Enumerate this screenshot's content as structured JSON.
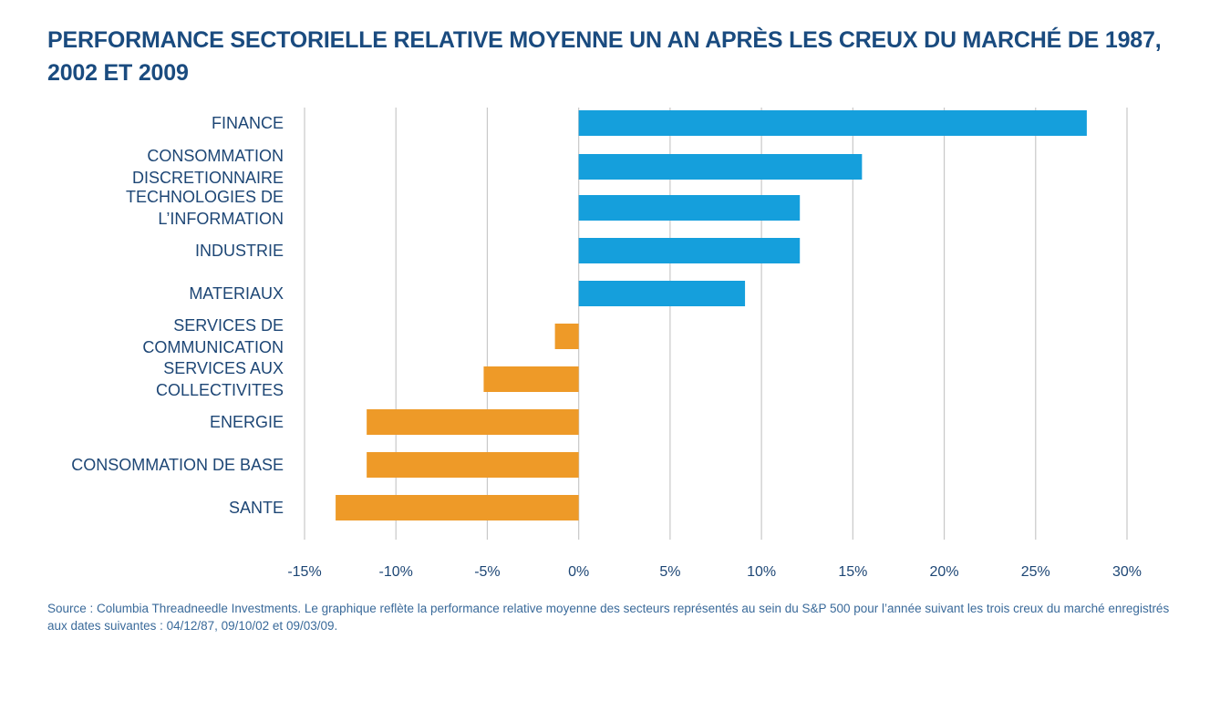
{
  "chart_data": {
    "type": "bar",
    "orientation": "horizontal",
    "title": "PERFORMANCE SECTORIELLE RELATIVE MOYENNE UN AN APRÈS LES CREUX DU MARCHÉ DE 1987, 2002 ET 2009",
    "categories": [
      [
        "FINANCE"
      ],
      [
        "CONSOMMATION",
        "DISCRETIONNAIRE"
      ],
      [
        "TECHNOLOGIES DE",
        "L’INFORMATION"
      ],
      [
        "INDUSTRIE"
      ],
      [
        "MATERIAUX"
      ],
      [
        "SERVICES DE",
        "COMMUNICATION"
      ],
      [
        "SERVICES AUX",
        "COLLECTIVITES"
      ],
      [
        "ENERGIE"
      ],
      [
        "CONSOMMATION DE BASE"
      ],
      [
        "SANTE"
      ]
    ],
    "values": [
      27.8,
      15.5,
      12.1,
      12.1,
      9.1,
      -1.3,
      -5.2,
      -11.6,
      -11.6,
      -13.3
    ],
    "xlim": [
      -15,
      30
    ],
    "xticks": [
      -15,
      -10,
      -5,
      0,
      5,
      10,
      15,
      20,
      25,
      30
    ],
    "xtick_labels": [
      "-15%",
      "-10%",
      "-5%",
      "0%",
      "5%",
      "10%",
      "15%",
      "20%",
      "25%",
      "30%"
    ],
    "grid": "vertical",
    "legend": "none",
    "colors": {
      "positive": "#159fdc",
      "negative": "#ee9a28",
      "grid": "#c8c8c8",
      "text": "#1d4675"
    }
  },
  "source": "Source : Columbia Threadneedle Investments. Le graphique reflète la performance relative moyenne des secteurs représentés au sein du S&P 500 pour l’année suivant les trois creux du marché enregistrés aux dates suivantes : 04/12/87, 09/10/02 et 09/03/09."
}
